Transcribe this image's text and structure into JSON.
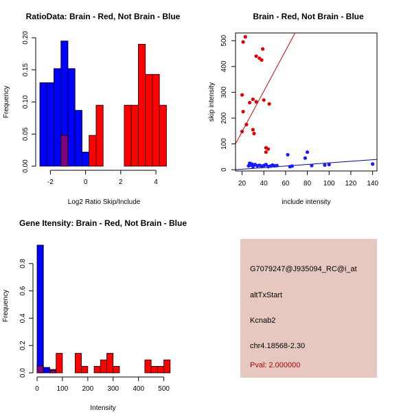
{
  "info_panel": {
    "probe_id": "G7079247@J935094_RC@i_at",
    "event_type": "altTxStart",
    "gene": "Kcnab2",
    "location": "chr4.18568-2.30",
    "pval": "Pval: 2.000000",
    "bg_color": "#e6c8c1",
    "pval_color": "#b00000"
  },
  "colors": {
    "red": "#ff0000",
    "blue": "#0000ff",
    "overlap": "#800080",
    "red_dot": "#e00000",
    "blue_dot": "#1a1aff",
    "red_line": "#cc0000",
    "blue_line": "#000099"
  },
  "chart_data": [
    {
      "id": "ratio",
      "type": "histogram",
      "title": "RatioData: Brain - Red, Not Brain - Blue",
      "xlabel": "Log2 Ratio Skip/Include",
      "ylabel": "Frequency",
      "xlim": [
        -2.6,
        4.7
      ],
      "ylim": [
        0,
        0.2
      ],
      "xticks": [
        -2,
        0,
        2,
        4
      ],
      "yticks": [
        0,
        0.05,
        0.1,
        0.15,
        0.2
      ],
      "ytick_labels": [
        "0.00",
        "0.05",
        "0.10",
        "0.15",
        "0.20"
      ],
      "bin_width": 0.4,
      "series": [
        {
          "name": "Not Brain",
          "color": "blue",
          "bars": [
            [
              -2.6,
              0.13
            ],
            [
              -2.2,
              0.13
            ],
            [
              -1.8,
              0.152
            ],
            [
              -1.4,
              0.195
            ],
            [
              -1.0,
              0.152
            ],
            [
              -0.6,
              0.087
            ],
            [
              -0.2,
              0.022
            ]
          ]
        },
        {
          "name": "Brain",
          "color": "red",
          "bars": [
            [
              -1.4,
              0.048
            ],
            [
              0.2,
              0.048
            ],
            [
              0.6,
              0.095
            ],
            [
              2.2,
              0.095
            ],
            [
              2.6,
              0.095
            ],
            [
              3.0,
              0.19
            ],
            [
              3.4,
              0.143
            ],
            [
              3.8,
              0.143
            ],
            [
              4.2,
              0.095
            ]
          ]
        }
      ],
      "overlap_bars": [
        [
          -1.4,
          0.048
        ]
      ]
    },
    {
      "id": "scatter",
      "type": "scatter",
      "title": "Brain - Red, Not Brain - Blue",
      "xlabel": "include intensity",
      "ylabel": "skip intensity",
      "xlim": [
        14,
        144
      ],
      "ylim": [
        -5,
        530
      ],
      "xticks": [
        20,
        40,
        60,
        80,
        100,
        120,
        140
      ],
      "yticks": [
        0,
        100,
        200,
        300,
        400,
        500
      ],
      "series": [
        {
          "name": "Brain",
          "color": "red_dot",
          "points": [
            [
              21,
              495
            ],
            [
              23,
              515
            ],
            [
              33,
              440
            ],
            [
              36,
              432
            ],
            [
              38,
              425
            ],
            [
              39,
              468
            ],
            [
              20,
              290
            ],
            [
              21,
              225
            ],
            [
              20,
              148
            ],
            [
              24,
              175
            ],
            [
              27,
              260
            ],
            [
              30,
              155
            ],
            [
              31,
              140
            ],
            [
              30,
              273
            ],
            [
              33,
              263
            ],
            [
              40,
              270
            ],
            [
              45,
              255
            ],
            [
              42,
              85
            ],
            [
              44,
              80
            ],
            [
              42,
              68
            ]
          ],
          "fit": [
            [
              14,
              100
            ],
            [
              70,
              540
            ]
          ]
        },
        {
          "name": "Not Brain",
          "color": "blue_dot",
          "points": [
            [
              26,
              15
            ],
            [
              27,
              25
            ],
            [
              28,
              18
            ],
            [
              29,
              22
            ],
            [
              30,
              12
            ],
            [
              32,
              20
            ],
            [
              34,
              15
            ],
            [
              36,
              17
            ],
            [
              38,
              14
            ],
            [
              40,
              16
            ],
            [
              42,
              20
            ],
            [
              44,
              12
            ],
            [
              46,
              14
            ],
            [
              48,
              18
            ],
            [
              50,
              15
            ],
            [
              52,
              16
            ],
            [
              62,
              58
            ],
            [
              64,
              12
            ],
            [
              66,
              14
            ],
            [
              78,
              45
            ],
            [
              80,
              68
            ],
            [
              84,
              16
            ],
            [
              96,
              18
            ],
            [
              100,
              20
            ],
            [
              140,
              22
            ]
          ],
          "fit": [
            [
              14,
              0
            ],
            [
              144,
              40
            ]
          ]
        }
      ]
    },
    {
      "id": "intensity",
      "type": "histogram",
      "title": "Gene Itensity: Brain - Red, Not Brain - Blue",
      "xlabel": "Intensity",
      "ylabel": "Frequency",
      "xlim": [
        0,
        520
      ],
      "ylim": [
        0,
        0.98
      ],
      "xticks": [
        0,
        100,
        200,
        300,
        400,
        500
      ],
      "yticks": [
        0,
        0.2,
        0.4,
        0.6,
        0.8
      ],
      "ytick_labels": [
        "0.0",
        "0.2",
        "0.4",
        "0.6",
        "0.8"
      ],
      "bin_width": 25,
      "series": [
        {
          "name": "Not Brain",
          "color": "blue",
          "bars": [
            [
              0,
              0.935
            ],
            [
              25,
              0.04
            ],
            [
              50,
              0.02
            ]
          ]
        },
        {
          "name": "Brain",
          "color": "red",
          "bars": [
            [
              0,
              0.05
            ],
            [
              50,
              0.025
            ],
            [
              75,
              0.143
            ],
            [
              150,
              0.143
            ],
            [
              175,
              0.048
            ],
            [
              225,
              0.048
            ],
            [
              250,
              0.095
            ],
            [
              275,
              0.143
            ],
            [
              300,
              0.048
            ],
            [
              425,
              0.095
            ],
            [
              450,
              0.048
            ],
            [
              475,
              0.048
            ],
            [
              500,
              0.095
            ]
          ]
        }
      ],
      "overlap_bars": [
        [
          0,
          0.05
        ],
        [
          25,
          0.0
        ],
        [
          50,
          0.02
        ]
      ]
    }
  ]
}
